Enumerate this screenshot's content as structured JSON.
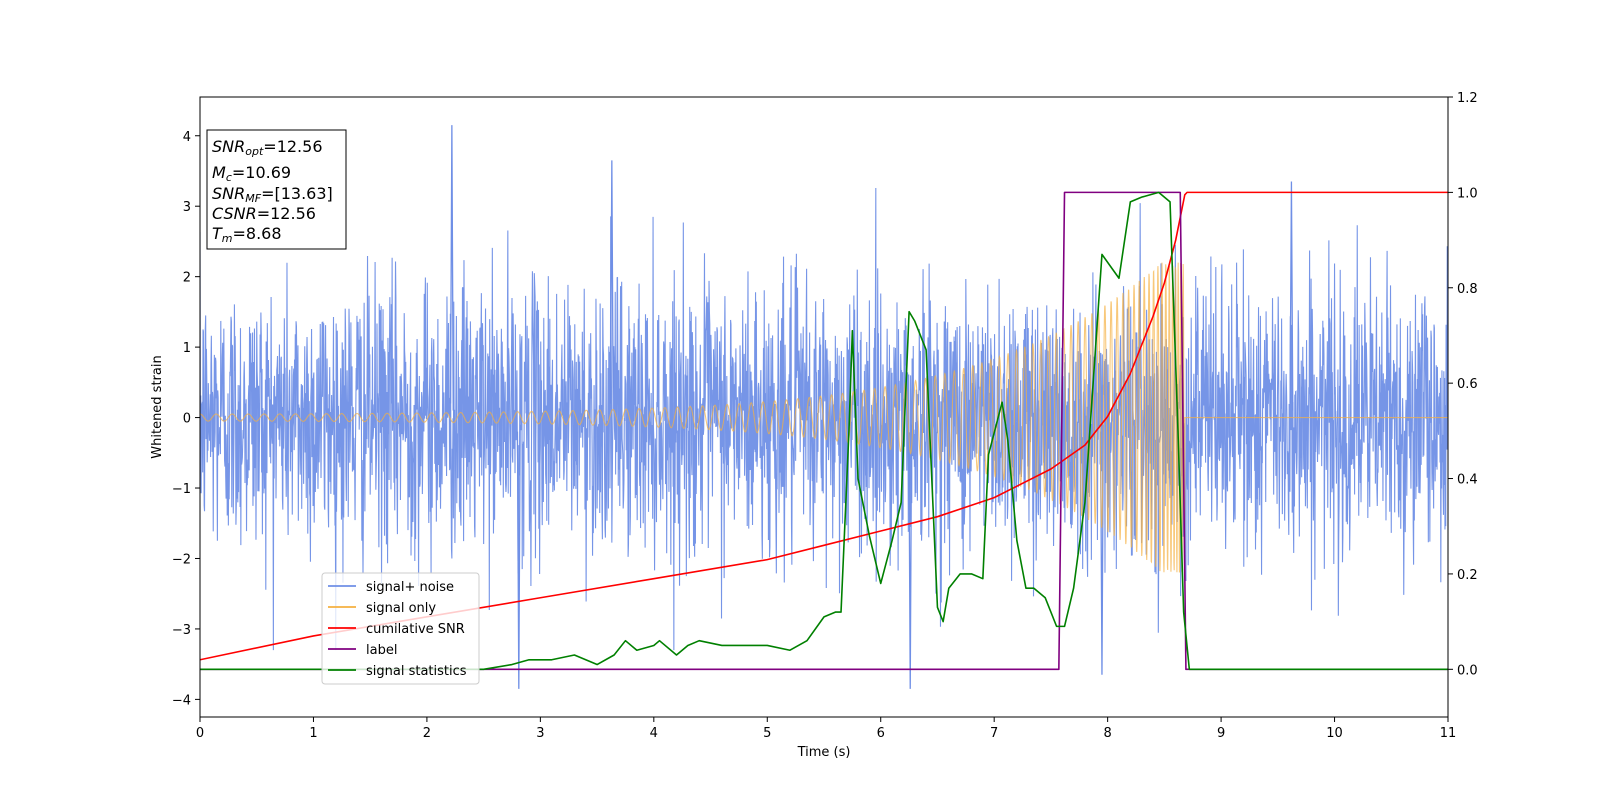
{
  "chart_data": {
    "type": "line",
    "title": "",
    "xlabel": "Time (s)",
    "ylabel": "Whitened strain",
    "xlim": [
      0,
      11
    ],
    "ylim_left": [
      -4.25,
      4.55
    ],
    "ylim_right": [
      -0.1,
      1.2
    ],
    "x_ticks": [
      "0",
      "1",
      "2",
      "3",
      "4",
      "5",
      "6",
      "7",
      "8",
      "9",
      "10",
      "11"
    ],
    "y_ticks_left": [
      "4",
      "3",
      "2",
      "1",
      "0",
      "−1",
      "−2",
      "−3",
      "−4"
    ],
    "y_ticks_right": [
      "1.2",
      "1.0",
      "0.8",
      "0.6",
      "0.4",
      "0.2",
      "0.0"
    ],
    "annotation": [
      {
        "base": "SNR",
        "sub": "opt",
        "value": "=12.56"
      },
      {
        "base": "M",
        "sub": "c",
        "value": "=10.69"
      },
      {
        "base": "SNR",
        "sub": "MF",
        "value": "=[13.63]"
      },
      {
        "base": "CSNR",
        "sub": "",
        "value": "=12.56"
      },
      {
        "base": "T",
        "sub": "m",
        "value": "=8.68"
      }
    ],
    "legend": {
      "location": "lower-left",
      "entries": [
        {
          "label": "signal+ noise",
          "color": "#6f8fe6"
        },
        {
          "label": "signal only",
          "color": "#f5b041"
        },
        {
          "label": "cumilative SNR",
          "color": "#ff0000"
        },
        {
          "label": "label",
          "color": "#800080"
        },
        {
          "label": "signal statistics",
          "color": "#008000"
        }
      ]
    },
    "series": [
      {
        "name": "signal+ noise",
        "axis": "left",
        "color": "#6f8fe6",
        "description": "whitened noisy strain, roughly N(0,1) across 0-11 s",
        "noise_sigma": 1.0,
        "peak_points": [
          [
            2.22,
            4.15
          ],
          [
            3.63,
            3.65
          ],
          [
            9.62,
            3.35
          ],
          [
            2.81,
            -3.85
          ],
          [
            6.26,
            -3.85
          ],
          [
            7.95,
            -3.65
          ]
        ]
      },
      {
        "name": "signal only",
        "axis": "left",
        "color": "#f5b041",
        "description": "chirp waveform with growing amplitude, merger at t_c",
        "t_c": 8.68,
        "amplitude_start": 0.05,
        "amplitude_at_merger": 2.2
      },
      {
        "name": "cumilative SNR",
        "axis": "right",
        "color": "#ff0000",
        "x": [
          0,
          1,
          2,
          3,
          4,
          5,
          5.5,
          6,
          6.5,
          7,
          7.5,
          7.8,
          8.0,
          8.2,
          8.4,
          8.5,
          8.6,
          8.68,
          8.7,
          11
        ],
        "y": [
          0.02,
          0.07,
          0.11,
          0.15,
          0.19,
          0.23,
          0.26,
          0.29,
          0.32,
          0.36,
          0.42,
          0.47,
          0.53,
          0.62,
          0.74,
          0.81,
          0.9,
          0.995,
          1.0,
          1.0
        ]
      },
      {
        "name": "label",
        "axis": "right",
        "color": "#800080",
        "x": [
          0,
          7.57,
          7.62,
          8.64,
          8.69,
          11
        ],
        "y": [
          0.0,
          0.0,
          1.0,
          1.0,
          0.0,
          0.0
        ]
      },
      {
        "name": "signal statistics",
        "axis": "right",
        "color": "#008000",
        "x": [
          0,
          1,
          2,
          2.5,
          2.75,
          2.9,
          3.1,
          3.3,
          3.5,
          3.65,
          3.75,
          3.85,
          4.0,
          4.05,
          4.2,
          4.3,
          4.4,
          4.6,
          4.8,
          5.0,
          5.2,
          5.35,
          5.5,
          5.6,
          5.65,
          5.72,
          5.75,
          5.8,
          5.9,
          6.0,
          6.1,
          6.18,
          6.25,
          6.3,
          6.4,
          6.5,
          6.55,
          6.6,
          6.7,
          6.8,
          6.9,
          6.95,
          7.07,
          7.12,
          7.2,
          7.28,
          7.35,
          7.45,
          7.55,
          7.62,
          7.7,
          7.8,
          7.95,
          8.1,
          8.2,
          8.3,
          8.45,
          8.55,
          8.62,
          8.67,
          8.72,
          8.8,
          11
        ],
        "y": [
          0.0,
          0.0,
          0.0,
          0.0,
          0.01,
          0.02,
          0.02,
          0.03,
          0.01,
          0.03,
          0.06,
          0.04,
          0.05,
          0.06,
          0.03,
          0.05,
          0.06,
          0.05,
          0.05,
          0.05,
          0.04,
          0.06,
          0.11,
          0.12,
          0.12,
          0.5,
          0.71,
          0.4,
          0.28,
          0.18,
          0.27,
          0.35,
          0.75,
          0.73,
          0.67,
          0.13,
          0.1,
          0.17,
          0.2,
          0.2,
          0.19,
          0.45,
          0.56,
          0.48,
          0.27,
          0.17,
          0.17,
          0.15,
          0.09,
          0.09,
          0.17,
          0.35,
          0.87,
          0.82,
          0.98,
          0.99,
          1.0,
          0.98,
          0.5,
          0.12,
          0.0,
          0.0,
          0.0
        ]
      }
    ]
  }
}
